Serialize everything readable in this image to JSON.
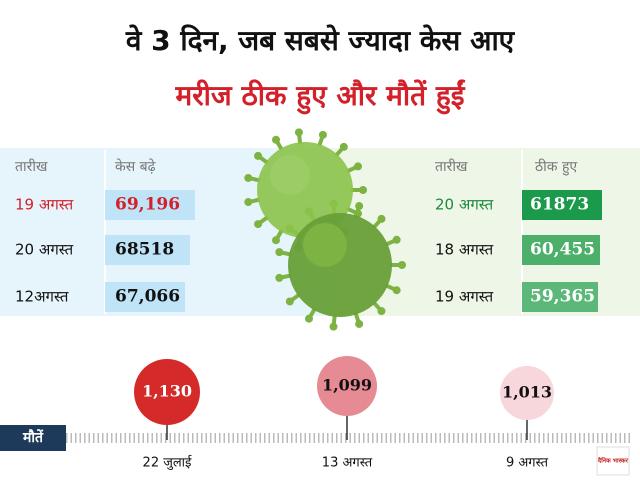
{
  "title": "वे 3 दिन, जब सबसे ज्यादा केस आए",
  "subtitle": "मरीज ठीक हुए और मौतें हुईं",
  "cases_table": {
    "headers": [
      "तारीख",
      "केस बढ़े"
    ],
    "rows": [
      [
        "19 अगस्त",
        "69,196"
      ],
      [
        "20 अगस्त",
        "68518"
      ],
      [
        "12अगस्त",
        "67,066"
      ]
    ]
  },
  "recovered_table": {
    "headers": [
      "तारीख",
      "ठीक हुए"
    ],
    "rows": [
      [
        "20 अगस्त",
        "61873"
      ],
      [
        "18 अगस्त",
        "60,455"
      ],
      [
        "19 अगस्त",
        "59,365"
      ]
    ]
  },
  "deaths": {
    "label": "मौतें",
    "items": [
      {
        "value": "1,130",
        "date": "22 जुलाई"
      },
      {
        "value": "1,099",
        "date": "13 अगस्त"
      },
      {
        "value": "1,013",
        "date": "9 अगस्त"
      }
    ]
  },
  "logo": "दैनिक भास्कर"
}
